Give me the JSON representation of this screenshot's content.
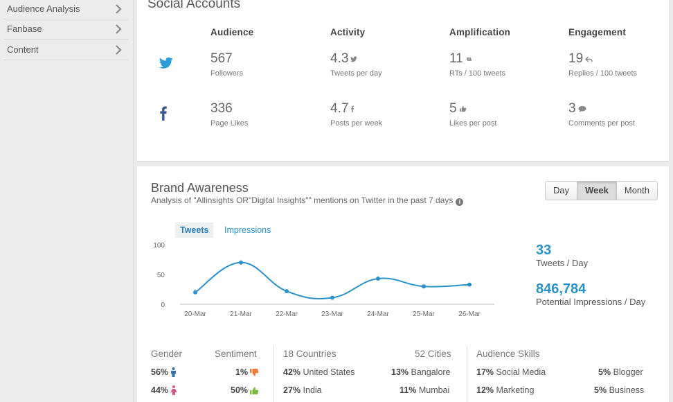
{
  "sidebar": {
    "items": [
      {
        "label": "Audience Analysis"
      },
      {
        "label": "Fanbase"
      },
      {
        "label": "Content"
      }
    ]
  },
  "social": {
    "title": "Social Accounts",
    "columns": [
      "Audience",
      "Activity",
      "Amplification",
      "Engagement"
    ],
    "twitter": {
      "icon": "twitter-icon",
      "audience": {
        "value": "567",
        "label": "Followers"
      },
      "activity": {
        "value": "4.3",
        "label": "Tweets per day"
      },
      "amplification": {
        "value": "11",
        "label": "RTs / 100 tweets"
      },
      "engagement": {
        "value": "19",
        "label": "Replies / 100 tweets"
      }
    },
    "facebook": {
      "icon": "facebook-icon",
      "audience": {
        "value": "336",
        "label": "Page Likes"
      },
      "activity": {
        "value": "4.7",
        "label": "Posts per week"
      },
      "amplification": {
        "value": "5",
        "label": "Likes per post"
      },
      "engagement": {
        "value": "3",
        "label": "Comments per post"
      }
    }
  },
  "brand": {
    "title": "Brand Awareness",
    "subtitle": "Analysis of \"Allinsights OR\"Digital Insights\"\" mentions on Twitter in the past 7 days",
    "ranges": [
      "Day",
      "Week",
      "Month"
    ],
    "active_range": "Week",
    "tabs": [
      "Tweets",
      "Impressions"
    ],
    "active_tab": "Tweets",
    "stats": {
      "tweets_value": "33",
      "tweets_label": "Tweets / Day",
      "impressions_value": "846,784",
      "impressions_label": "Potential Impressions / Day"
    },
    "gender": {
      "heading": "Gender",
      "male": "56%",
      "female": "44%"
    },
    "sentiment": {
      "heading": "Sentiment",
      "negative": "1%",
      "positive": "50%"
    },
    "countries": {
      "heading": "18 Countries",
      "rows": [
        {
          "pct": "42%",
          "name": "United States"
        },
        {
          "pct": "27%",
          "name": "India"
        }
      ]
    },
    "cities": {
      "heading": "52 Cities",
      "rows": [
        {
          "pct": "13%",
          "name": "Bangalore"
        },
        {
          "pct": "11%",
          "name": "Mumbai"
        }
      ]
    },
    "skills": {
      "heading": "Audience Skills",
      "left": [
        {
          "pct": "17%",
          "name": "Social Media"
        },
        {
          "pct": "12%",
          "name": "Marketing"
        }
      ],
      "right": [
        {
          "pct": "5%",
          "name": "Blogger"
        },
        {
          "pct": "5%",
          "name": "Business"
        }
      ]
    }
  },
  "colors": {
    "accent": "#2a92c8",
    "twitter": "#2a9ed8",
    "facebook": "#3b5998",
    "thumb_down": "#f07a3a",
    "thumb_up": "#7cba3c",
    "male": "#2f6fa6",
    "female": "#d9578a"
  },
  "chart_data": {
    "type": "line",
    "categories": [
      "20-Mar",
      "21-Mar",
      "22-Mar",
      "23-Mar",
      "24-Mar",
      "25-Mar",
      "26-Mar"
    ],
    "values": [
      20,
      70,
      22,
      11,
      43,
      30,
      33
    ],
    "ylim": [
      0,
      100
    ],
    "yticks": [
      0,
      50,
      100
    ],
    "grid": false,
    "legend": "none"
  }
}
